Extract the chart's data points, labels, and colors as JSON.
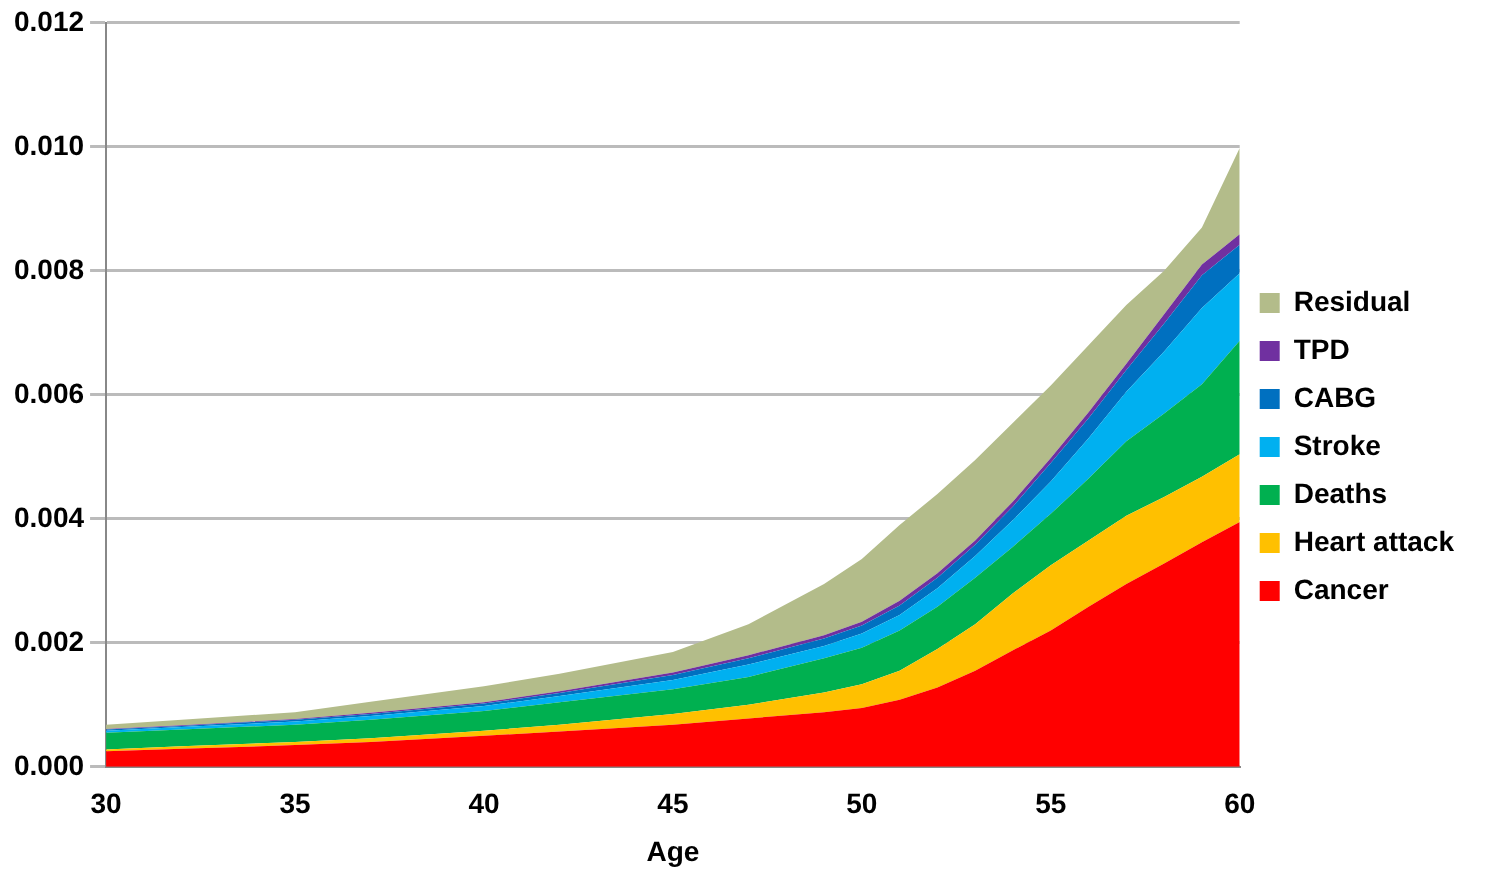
{
  "chart_data": {
    "type": "area",
    "stacked": true,
    "xlabel": "Age",
    "x": [
      30,
      32,
      35,
      37,
      40,
      42,
      45,
      47,
      49,
      50,
      51,
      52,
      53,
      54,
      55,
      56,
      57,
      58,
      59,
      60
    ],
    "xlim": [
      30,
      60
    ],
    "xticks": [
      30,
      35,
      40,
      45,
      50,
      55,
      60
    ],
    "ylim": [
      0,
      0.012
    ],
    "yticks": [
      {
        "value": 0,
        "label": "0.000"
      },
      {
        "value": 0.002,
        "label": "0.002"
      },
      {
        "value": 0.004,
        "label": "0.004"
      },
      {
        "value": 0.006,
        "label": "0.006"
      },
      {
        "value": 0.008,
        "label": "0.008"
      },
      {
        "value": 0.01,
        "label": "0.010"
      },
      {
        "value": 0.012,
        "label": "0.012"
      }
    ],
    "grid": "y",
    "legend": "right",
    "series": [
      {
        "name": "Cancer",
        "color": "#ff0000",
        "values": [
          0.00025,
          0.00029,
          0.00035,
          0.0004,
          0.0005,
          0.00057,
          0.00068,
          0.00078,
          0.00088,
          0.00095,
          0.00108,
          0.00128,
          0.00155,
          0.00188,
          0.0022,
          0.00258,
          0.00295,
          0.00328,
          0.00362,
          0.00395
        ]
      },
      {
        "name": "Heart attack",
        "color": "#ffc000",
        "values": [
          3e-05,
          4e-05,
          5e-05,
          6e-05,
          8e-05,
          0.00011,
          0.00017,
          0.00022,
          0.00032,
          0.00038,
          0.00047,
          0.00062,
          0.00075,
          0.00092,
          0.00105,
          0.00107,
          0.0011,
          0.00107,
          0.00106,
          0.00109
        ]
      },
      {
        "name": "Deaths",
        "color": "#00b050",
        "values": [
          0.00027,
          0.00027,
          0.00028,
          0.0003,
          0.00032,
          0.00036,
          0.0004,
          0.00045,
          0.00055,
          0.00059,
          0.00065,
          0.00068,
          0.00075,
          0.00075,
          0.00083,
          0.001,
          0.0012,
          0.00135,
          0.00149,
          0.00183
        ]
      },
      {
        "name": "Stroke",
        "color": "#00b0f0",
        "values": [
          3e-05,
          4e-05,
          5e-05,
          6e-05,
          8e-05,
          0.0001,
          0.00015,
          0.0002,
          0.0002,
          0.00023,
          0.00025,
          0.0003,
          0.00035,
          0.00043,
          0.00052,
          0.00065,
          0.0008,
          0.001,
          0.00123,
          0.00109
        ]
      },
      {
        "name": "CABG",
        "color": "#0070c0",
        "values": [
          2e-05,
          2e-05,
          3e-05,
          3e-05,
          4e-05,
          5e-05,
          8e-05,
          0.0001,
          0.00012,
          0.00013,
          0.00015,
          0.00017,
          0.00018,
          0.00022,
          0.0003,
          0.00032,
          0.00035,
          0.00045,
          0.00053,
          0.00046
        ]
      },
      {
        "name": "TPD",
        "color": "#7030a0",
        "values": [
          1e-05,
          1e-05,
          1e-05,
          2e-05,
          2e-05,
          3e-05,
          4e-05,
          5e-05,
          5e-05,
          6e-05,
          8e-05,
          7e-05,
          7e-05,
          8e-05,
          8e-05,
          0.0001,
          0.0001,
          0.00015,
          0.00017,
          0.00017
        ]
      },
      {
        "name": "Residual",
        "color": "#b3bc8a",
        "values": [
          7e-05,
          9e-05,
          0.00011,
          0.00018,
          0.00026,
          0.00028,
          0.00033,
          0.0005,
          0.00083,
          0.00101,
          0.00122,
          0.00128,
          0.0013,
          0.00127,
          0.00117,
          0.00108,
          0.00095,
          0.0007,
          0.0006,
          0.00139
        ]
      }
    ]
  }
}
